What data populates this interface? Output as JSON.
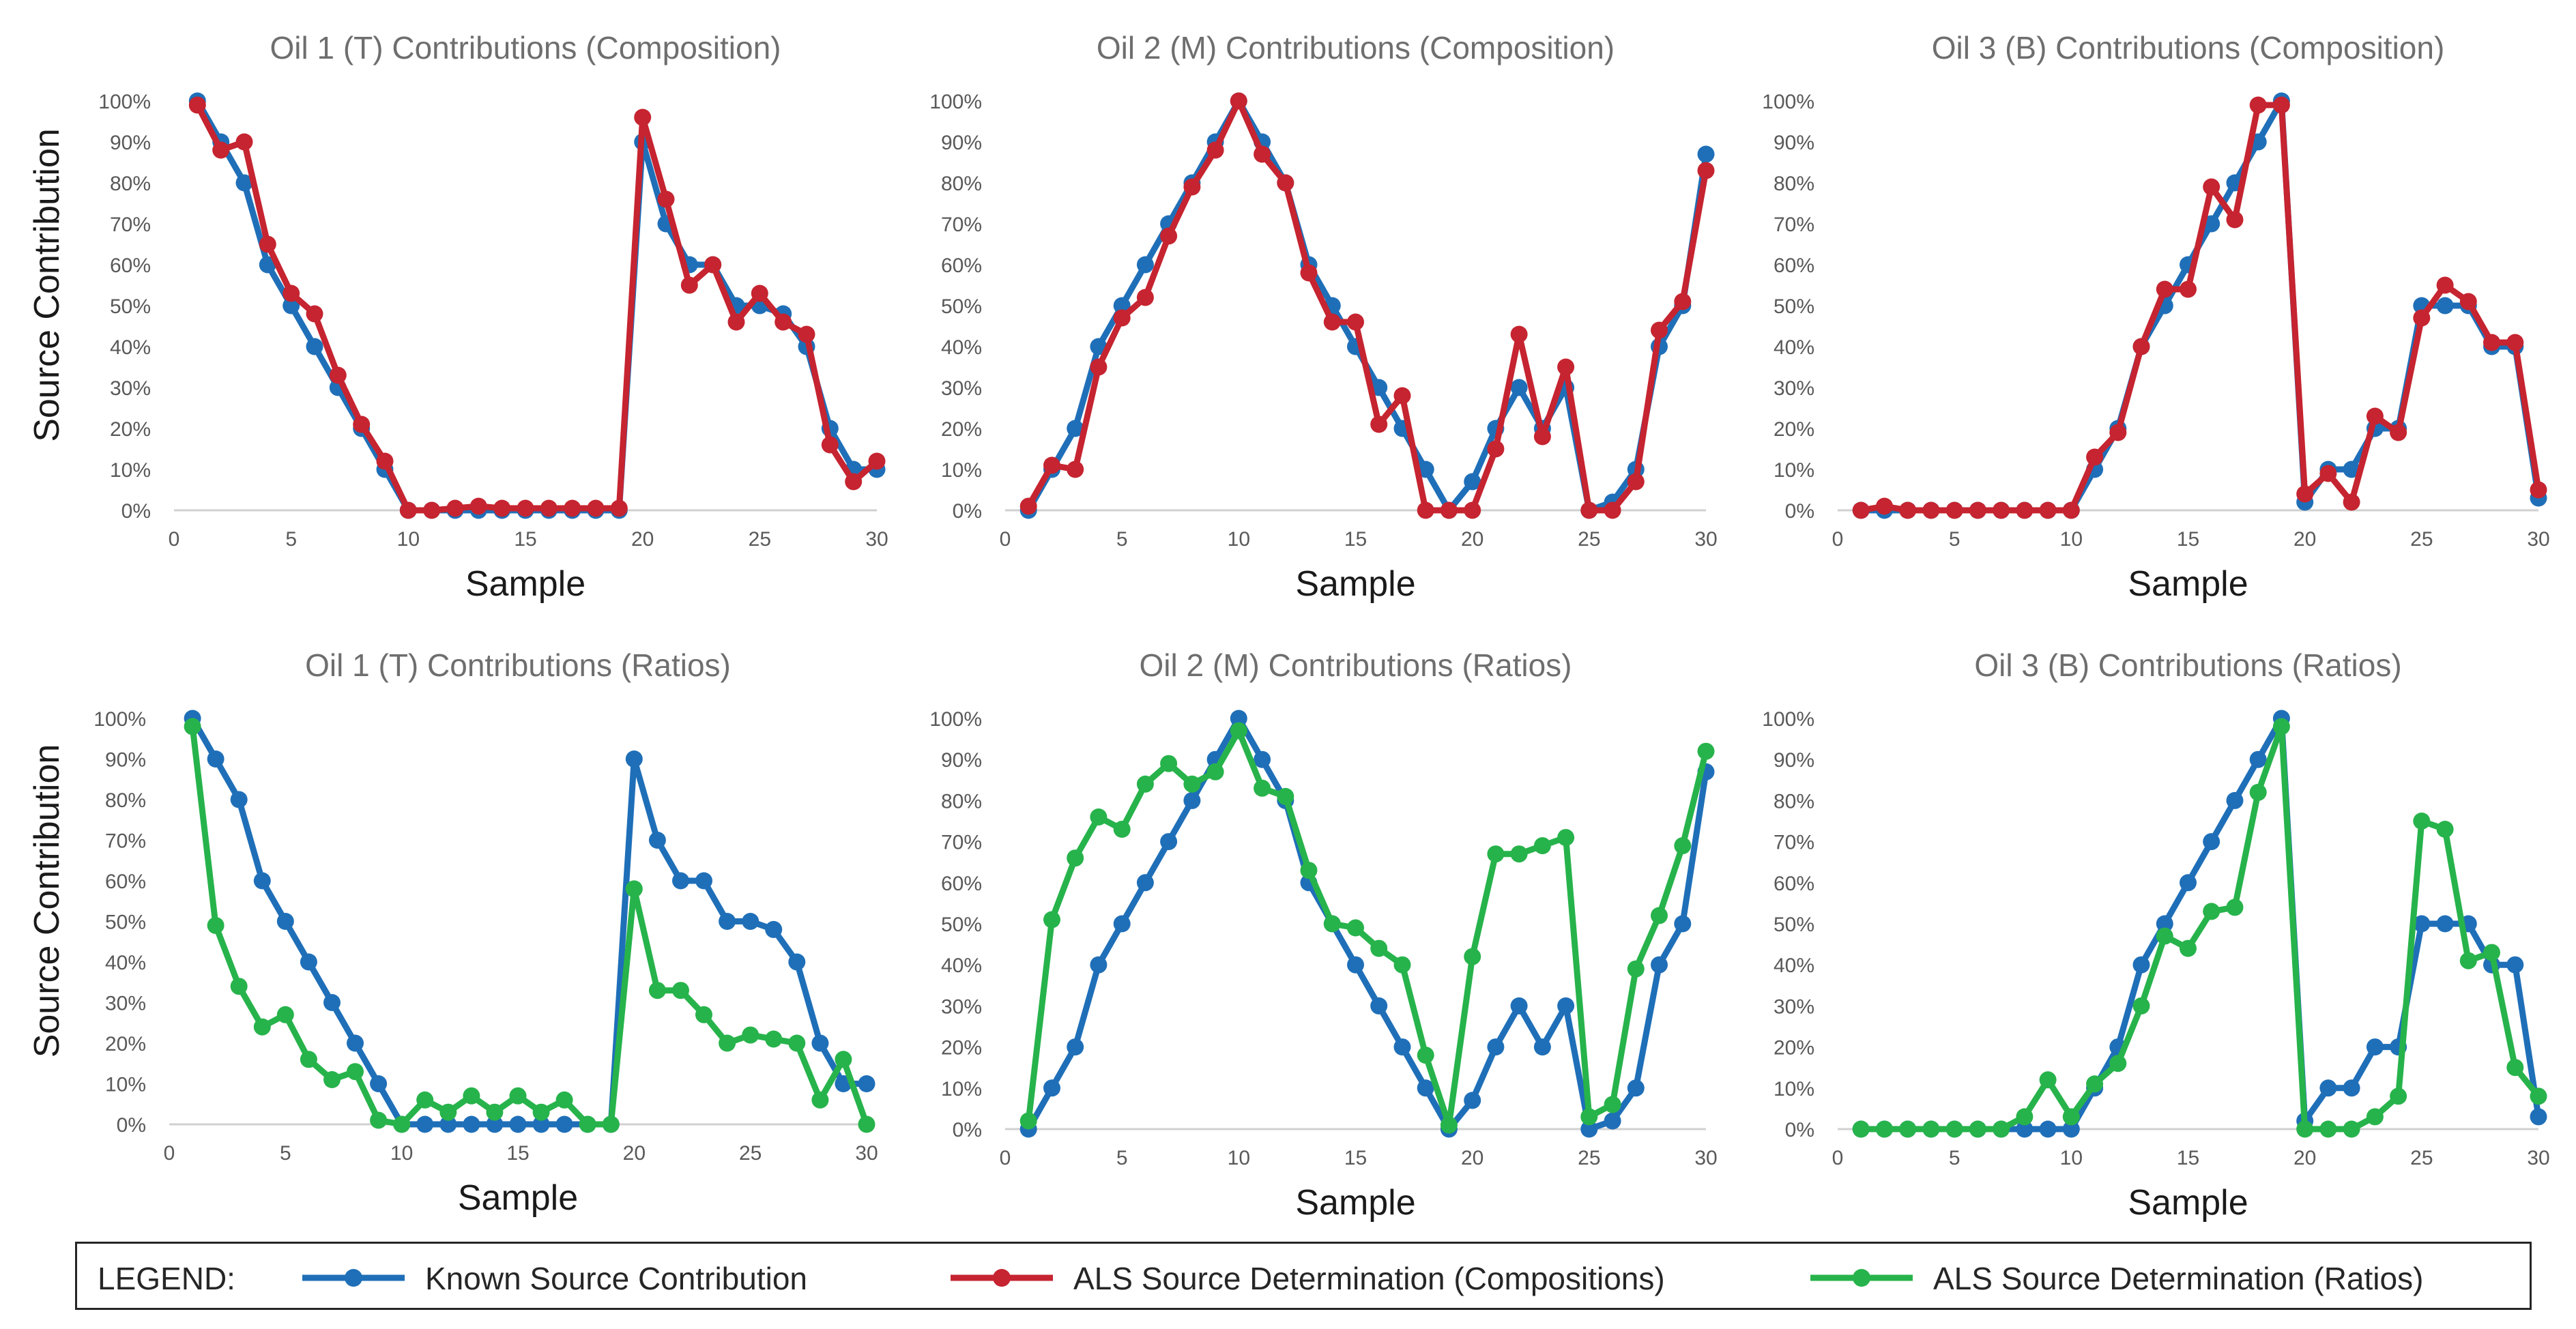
{
  "colors": {
    "known": "#1f6fb8",
    "als_comp": "#c52430",
    "als_ratio": "#27b34b",
    "axis_text": "#595959",
    "title_text": "#6e6e6e"
  },
  "legend": {
    "title": "LEGEND:",
    "items": [
      {
        "label": "Known Source Contribution",
        "color": "#1f6fb8"
      },
      {
        "label": "ALS Source Determination (Compositions)",
        "color": "#c52430"
      },
      {
        "label": "ALS Source Determination (Ratios)",
        "color": "#27b34b"
      }
    ]
  },
  "chart_data": [
    {
      "type": "line",
      "title": "Oil 1 (T) Contributions (Composition)",
      "xlabel": "Sample",
      "ylabel": "Source Contribution",
      "xlim": [
        0,
        30
      ],
      "ylim": [
        0,
        1
      ],
      "xticks": [
        "0",
        "5",
        "10",
        "15",
        "20",
        "25",
        "30"
      ],
      "yticks": [
        "0%",
        "10%",
        "20%",
        "30%",
        "40%",
        "50%",
        "60%",
        "70%",
        "80%",
        "90%",
        "100%"
      ],
      "x": [
        1,
        2,
        3,
        4,
        5,
        6,
        7,
        8,
        9,
        10,
        11,
        12,
        13,
        14,
        15,
        16,
        17,
        18,
        19,
        20,
        21,
        22,
        23,
        24,
        25,
        26,
        27,
        28,
        29,
        30
      ],
      "series": [
        {
          "name": "Known Source Contribution",
          "color": "#1f6fb8",
          "values": [
            1.0,
            0.9,
            0.8,
            0.6,
            0.5,
            0.4,
            0.3,
            0.2,
            0.1,
            0,
            0,
            0,
            0,
            0,
            0,
            0,
            0,
            0,
            0,
            0.9,
            0.7,
            0.6,
            0.6,
            0.5,
            0.5,
            0.48,
            0.4,
            0.2,
            0.1,
            0.1
          ]
        },
        {
          "name": "ALS Source Determination (Compositions)",
          "color": "#c52430",
          "values": [
            0.99,
            0.88,
            0.9,
            0.65,
            0.53,
            0.48,
            0.33,
            0.21,
            0.12,
            0,
            0,
            0.005,
            0.01,
            0.005,
            0.005,
            0.005,
            0.005,
            0.005,
            0.005,
            0.96,
            0.76,
            0.55,
            0.6,
            0.46,
            0.53,
            0.46,
            0.43,
            0.16,
            0.07,
            0.12
          ]
        }
      ]
    },
    {
      "type": "line",
      "title": "Oil 2 (M) Contributions (Composition)",
      "xlabel": "Sample",
      "ylabel": "",
      "xlim": [
        0,
        30
      ],
      "ylim": [
        0,
        1
      ],
      "xticks": [
        "0",
        "5",
        "10",
        "15",
        "20",
        "25",
        "30"
      ],
      "yticks": [
        "0%",
        "10%",
        "20%",
        "30%",
        "40%",
        "50%",
        "60%",
        "70%",
        "80%",
        "90%",
        "100%"
      ],
      "x": [
        1,
        2,
        3,
        4,
        5,
        6,
        7,
        8,
        9,
        10,
        11,
        12,
        13,
        14,
        15,
        16,
        17,
        18,
        19,
        20,
        21,
        22,
        23,
        24,
        25,
        26,
        27,
        28,
        29,
        30
      ],
      "series": [
        {
          "name": "Known Source Contribution",
          "color": "#1f6fb8",
          "values": [
            0,
            0.1,
            0.2,
            0.4,
            0.5,
            0.6,
            0.7,
            0.8,
            0.9,
            1.0,
            0.9,
            0.8,
            0.6,
            0.5,
            0.4,
            0.3,
            0.2,
            0.1,
            0,
            0.07,
            0.2,
            0.3,
            0.2,
            0.3,
            0,
            0.02,
            0.1,
            0.4,
            0.5,
            0.87
          ]
        },
        {
          "name": "ALS Source Determination (Compositions)",
          "color": "#c52430",
          "values": [
            0.01,
            0.11,
            0.1,
            0.35,
            0.47,
            0.52,
            0.67,
            0.79,
            0.88,
            1.0,
            0.87,
            0.8,
            0.58,
            0.46,
            0.46,
            0.21,
            0.28,
            0,
            0,
            0,
            0.15,
            0.43,
            0.18,
            0.35,
            0,
            0,
            0.07,
            0.44,
            0.51,
            0.83
          ]
        }
      ]
    },
    {
      "type": "line",
      "title": "Oil 3 (B) Contributions (Composition)",
      "xlabel": "Sample",
      "ylabel": "",
      "xlim": [
        0,
        30
      ],
      "ylim": [
        0,
        1
      ],
      "xticks": [
        "0",
        "5",
        "10",
        "15",
        "20",
        "25",
        "30"
      ],
      "yticks": [
        "0%",
        "10%",
        "20%",
        "30%",
        "40%",
        "50%",
        "60%",
        "70%",
        "80%",
        "90%",
        "100%"
      ],
      "x": [
        1,
        2,
        3,
        4,
        5,
        6,
        7,
        8,
        9,
        10,
        11,
        12,
        13,
        14,
        15,
        16,
        17,
        18,
        19,
        20,
        21,
        22,
        23,
        24,
        25,
        26,
        27,
        28,
        29,
        30
      ],
      "series": [
        {
          "name": "Known Source Contribution",
          "color": "#1f6fb8",
          "values": [
            0,
            0,
            0,
            0,
            0,
            0,
            0,
            0,
            0,
            0,
            0.1,
            0.2,
            0.4,
            0.5,
            0.6,
            0.7,
            0.8,
            0.9,
            1.0,
            0.02,
            0.1,
            0.1,
            0.2,
            0.2,
            0.5,
            0.5,
            0.5,
            0.4,
            0.4,
            0.03
          ]
        },
        {
          "name": "ALS Source Determination (Compositions)",
          "color": "#c52430",
          "values": [
            0,
            0.01,
            0,
            0,
            0,
            0,
            0,
            0,
            0,
            0,
            0.13,
            0.19,
            0.4,
            0.54,
            0.54,
            0.79,
            0.71,
            0.99,
            0.99,
            0.04,
            0.09,
            0.02,
            0.23,
            0.19,
            0.47,
            0.55,
            0.51,
            0.41,
            0.41,
            0.05
          ]
        }
      ]
    },
    {
      "type": "line",
      "title": "Oil 1 (T) Contributions (Ratios)",
      "xlabel": "Sample",
      "ylabel": "Source Contribution",
      "xlim": [
        0,
        30
      ],
      "ylim": [
        0,
        1
      ],
      "xticks": [
        "0",
        "5",
        "10",
        "15",
        "20",
        "25",
        "30"
      ],
      "yticks": [
        "0%",
        "10%",
        "20%",
        "30%",
        "40%",
        "50%",
        "60%",
        "70%",
        "80%",
        "90%",
        "100%"
      ],
      "x": [
        1,
        2,
        3,
        4,
        5,
        6,
        7,
        8,
        9,
        10,
        11,
        12,
        13,
        14,
        15,
        16,
        17,
        18,
        19,
        20,
        21,
        22,
        23,
        24,
        25,
        26,
        27,
        28,
        29,
        30
      ],
      "series": [
        {
          "name": "Known Source Contribution",
          "color": "#1f6fb8",
          "values": [
            1.0,
            0.9,
            0.8,
            0.6,
            0.5,
            0.4,
            0.3,
            0.2,
            0.1,
            0,
            0,
            0,
            0,
            0,
            0,
            0,
            0,
            0,
            0,
            0.9,
            0.7,
            0.6,
            0.6,
            0.5,
            0.5,
            0.48,
            0.4,
            0.2,
            0.1,
            0.1
          ]
        },
        {
          "name": "ALS Source Determination (Ratios)",
          "color": "#27b34b",
          "values": [
            0.98,
            0.49,
            0.34,
            0.24,
            0.27,
            0.16,
            0.11,
            0.13,
            0.01,
            0,
            0.06,
            0.03,
            0.07,
            0.03,
            0.07,
            0.03,
            0.06,
            0,
            0,
            0.58,
            0.33,
            0.33,
            0.27,
            0.2,
            0.22,
            0.21,
            0.2,
            0.06,
            0.16,
            0
          ]
        }
      ]
    },
    {
      "type": "line",
      "title": "Oil 2 (M) Contributions (Ratios)",
      "xlabel": "Sample",
      "ylabel": "",
      "xlim": [
        0,
        30
      ],
      "ylim": [
        0,
        1
      ],
      "xticks": [
        "0",
        "5",
        "10",
        "15",
        "20",
        "25",
        "30"
      ],
      "yticks": [
        "0%",
        "10%",
        "20%",
        "30%",
        "40%",
        "50%",
        "60%",
        "70%",
        "80%",
        "90%",
        "100%"
      ],
      "x": [
        1,
        2,
        3,
        4,
        5,
        6,
        7,
        8,
        9,
        10,
        11,
        12,
        13,
        14,
        15,
        16,
        17,
        18,
        19,
        20,
        21,
        22,
        23,
        24,
        25,
        26,
        27,
        28,
        29,
        30
      ],
      "series": [
        {
          "name": "Known Source Contribution",
          "color": "#1f6fb8",
          "values": [
            0,
            0.1,
            0.2,
            0.4,
            0.5,
            0.6,
            0.7,
            0.8,
            0.9,
            1.0,
            0.9,
            0.8,
            0.6,
            0.5,
            0.4,
            0.3,
            0.2,
            0.1,
            0,
            0.07,
            0.2,
            0.3,
            0.2,
            0.3,
            0,
            0.02,
            0.1,
            0.4,
            0.5,
            0.87
          ]
        },
        {
          "name": "ALS Source Determination (Ratios)",
          "color": "#27b34b",
          "values": [
            0.02,
            0.51,
            0.66,
            0.76,
            0.73,
            0.84,
            0.89,
            0.84,
            0.87,
            0.97,
            0.83,
            0.81,
            0.63,
            0.5,
            0.49,
            0.44,
            0.4,
            0.18,
            0.01,
            0.42,
            0.67,
            0.67,
            0.69,
            0.71,
            0.03,
            0.06,
            0.39,
            0.52,
            0.69,
            0.92
          ]
        }
      ]
    },
    {
      "type": "line",
      "title": "Oil 3 (B) Contributions (Ratios)",
      "xlabel": "Sample",
      "ylabel": "",
      "xlim": [
        0,
        30
      ],
      "ylim": [
        0,
        1
      ],
      "xticks": [
        "0",
        "5",
        "10",
        "15",
        "20",
        "25",
        "30"
      ],
      "yticks": [
        "0%",
        "10%",
        "20%",
        "30%",
        "40%",
        "50%",
        "60%",
        "70%",
        "80%",
        "90%",
        "100%"
      ],
      "x": [
        1,
        2,
        3,
        4,
        5,
        6,
        7,
        8,
        9,
        10,
        11,
        12,
        13,
        14,
        15,
        16,
        17,
        18,
        19,
        20,
        21,
        22,
        23,
        24,
        25,
        26,
        27,
        28,
        29,
        30
      ],
      "series": [
        {
          "name": "Known Source Contribution",
          "color": "#1f6fb8",
          "values": [
            0,
            0,
            0,
            0,
            0,
            0,
            0,
            0,
            0,
            0,
            0.1,
            0.2,
            0.4,
            0.5,
            0.6,
            0.7,
            0.8,
            0.9,
            1.0,
            0.02,
            0.1,
            0.1,
            0.2,
            0.2,
            0.5,
            0.5,
            0.5,
            0.4,
            0.4,
            0.03
          ]
        },
        {
          "name": "ALS Source Determination (Ratios)",
          "color": "#27b34b",
          "values": [
            0,
            0,
            0,
            0,
            0,
            0,
            0,
            0.03,
            0.12,
            0.03,
            0.11,
            0.16,
            0.3,
            0.47,
            0.44,
            0.53,
            0.54,
            0.82,
            0.98,
            0,
            0,
            0,
            0.03,
            0.08,
            0.75,
            0.73,
            0.41,
            0.43,
            0.15,
            0.08
          ]
        }
      ]
    }
  ]
}
